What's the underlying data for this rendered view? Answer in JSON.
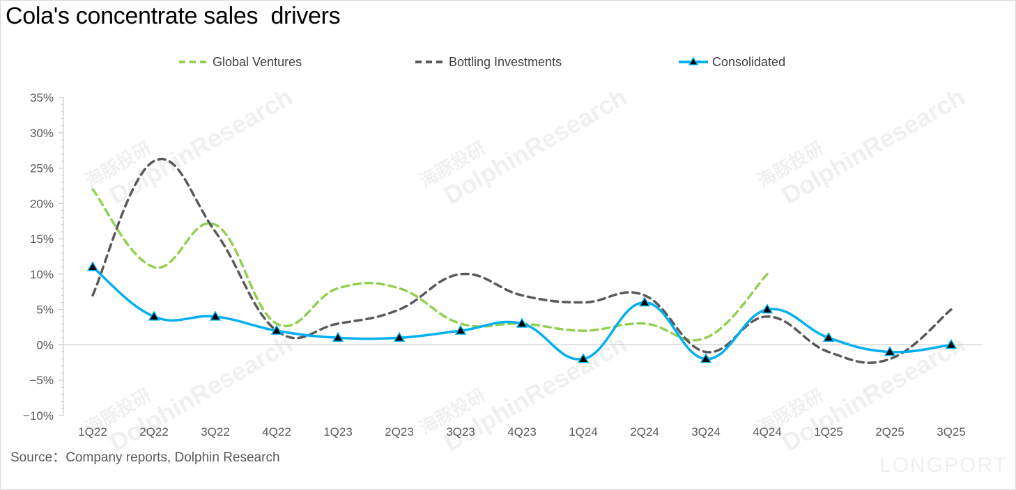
{
  "title": "Cola's concentrate sales  drivers",
  "source": "Source：Company reports, Dolphin Research",
  "watermark": {
    "cn": "海豚投研",
    "en": "DolphinResearch",
    "logo": "LONGPORT"
  },
  "colors": {
    "global_ventures": "#92d050",
    "bottling_investments": "#595959",
    "consolidated": "#00b0f0",
    "axis": "#bfbfbf"
  },
  "chart_data": {
    "type": "line",
    "categories": [
      "1Q22",
      "2Q22",
      "3Q22",
      "4Q22",
      "1Q23",
      "2Q23",
      "3Q23",
      "4Q23",
      "1Q24",
      "2Q24",
      "3Q24",
      "4Q24",
      "1Q25",
      "2Q25",
      "3Q25"
    ],
    "ylim": [
      -10,
      35
    ],
    "yticks": [
      -10,
      -5,
      0,
      5,
      10,
      15,
      20,
      25,
      30,
      35
    ],
    "ytick_labels": [
      "−10%",
      "−5%",
      "0%",
      "5%",
      "10%",
      "15%",
      "20%",
      "25%",
      "30%",
      "35%"
    ],
    "legend_position": "top",
    "series": [
      {
        "name": "Global Ventures",
        "style": "dashed",
        "color": "#92d050",
        "values": [
          22,
          11,
          17,
          3,
          8,
          8,
          3,
          3,
          2,
          3,
          1,
          10,
          null,
          null,
          null
        ]
      },
      {
        "name": "Bottling Investments",
        "style": "dashed",
        "color": "#595959",
        "values": [
          7,
          26,
          16,
          2,
          3,
          5,
          10,
          7,
          6,
          7,
          -1,
          4,
          -1,
          -2,
          5
        ]
      },
      {
        "name": "Consolidated",
        "style": "solid-triangle",
        "color": "#00b0f0",
        "values": [
          11,
          4,
          4,
          2,
          1,
          1,
          2,
          3,
          -2,
          6,
          -2,
          5,
          1,
          -1,
          0
        ]
      }
    ]
  }
}
